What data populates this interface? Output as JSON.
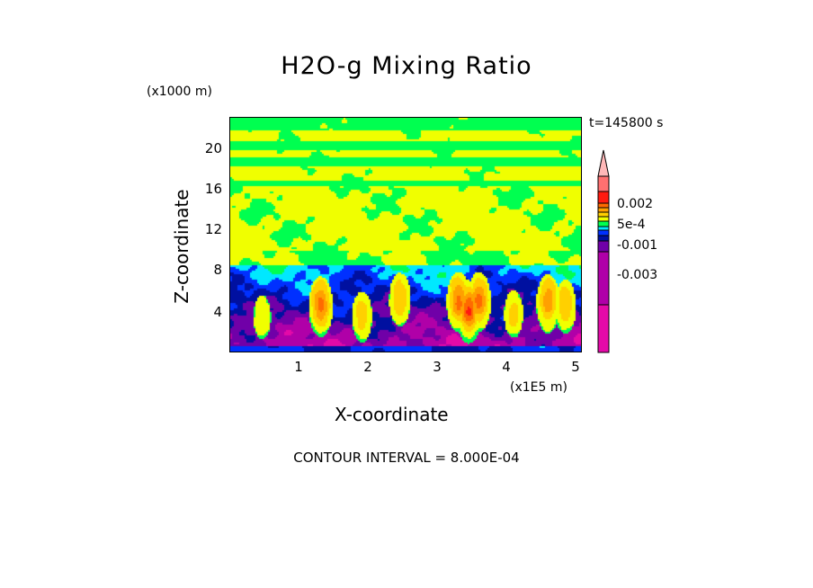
{
  "chart_data": {
    "type": "heatmap",
    "title": "H2O-g Mixing Ratio",
    "xlabel": "X-coordinate",
    "ylabel": "Z-coordinate",
    "x_unit": "(x1E5 m)",
    "y_unit": "(x1000 m)",
    "time_label": "t=145800 s",
    "xlim": [
      0,
      5.09
    ],
    "ylim": [
      0,
      23.1
    ],
    "x_ticks": [
      "1",
      "2",
      "3",
      "4",
      "5"
    ],
    "x_tick_values": [
      1,
      2,
      3,
      4,
      5
    ],
    "y_ticks": [
      "20",
      "16",
      "12",
      "8",
      "4"
    ],
    "y_tick_values": [
      20,
      16,
      12,
      8,
      4
    ],
    "colorbar": {
      "labels": [
        "0.002",
        "5e-4",
        "-0.001",
        "-0.003"
      ],
      "colors_bottom_to_top": [
        "#e40aa8",
        "#b000a8",
        "#7000a8",
        "#0010a0",
        "#0030ff",
        "#00e8ff",
        "#00ff50",
        "#f0ff00",
        "#ffd000",
        "#ffa000",
        "#ff6a00",
        "#ff1a10",
        "#ff7070"
      ],
      "overflow_color": "#ffb8b8"
    },
    "contour_interval_text": "CONTOUR INTERVAL = 8.000E-04"
  }
}
